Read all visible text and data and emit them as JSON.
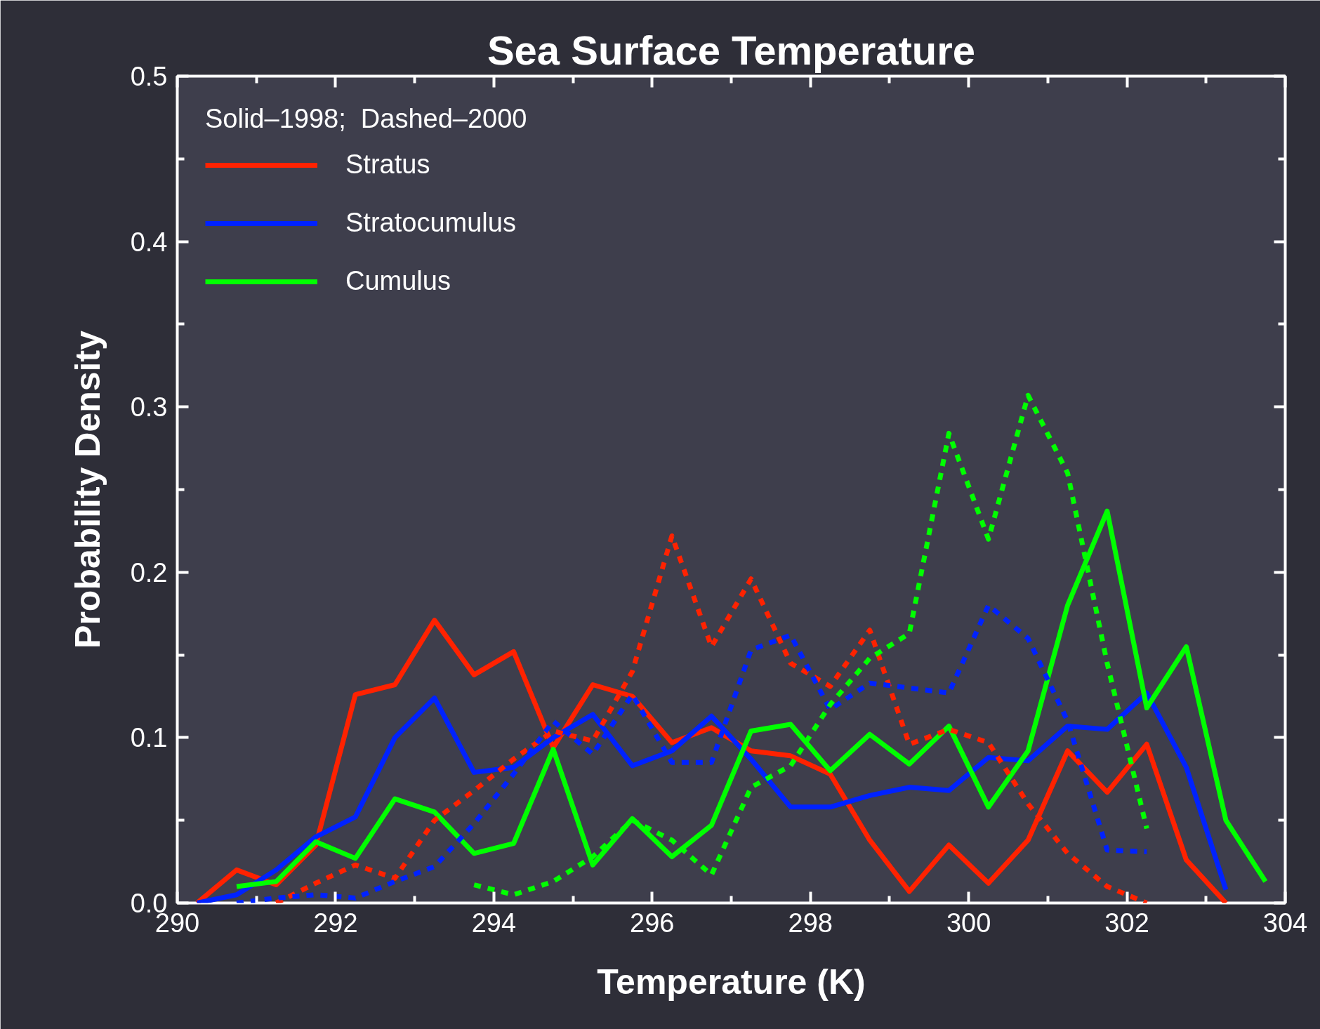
{
  "chart_data": {
    "type": "line",
    "title": "Sea Surface Temperature",
    "xlabel": "Temperature (K)",
    "ylabel": "Probability Density",
    "legend_title": "Solid–1998;  Dashed–2000",
    "legend": "top left",
    "grid": false,
    "marker": "none",
    "xlim": [
      290,
      304
    ],
    "xticks": [
      290,
      292,
      294,
      296,
      298,
      300,
      302,
      304
    ],
    "ylim": [
      0,
      0.5
    ],
    "yticks": [
      {
        "value": 0,
        "label": "0.0"
      },
      {
        "value": 0.1,
        "label": "0.1"
      },
      {
        "value": 0.2,
        "label": "0.2"
      },
      {
        "value": 0.3,
        "label": "0.3"
      },
      {
        "value": 0.4,
        "label": "0.4"
      },
      {
        "value": 0.5,
        "label": "0.5"
      }
    ],
    "series": [
      {
        "name": "Stratus",
        "color": "#ff2200",
        "line_style": "solid",
        "x": [
          290.25,
          290.75,
          291.25,
          291.75,
          292.25,
          292.75,
          293.25,
          293.75,
          294.25,
          294.75,
          295.25,
          295.75,
          296.25,
          296.75,
          297.25,
          297.75,
          298.25,
          298.75,
          299.25,
          299.75,
          300.25,
          300.75,
          301.25,
          301.75,
          302.25,
          302.75,
          303.25
        ],
        "values": [
          0,
          0.02,
          0.011,
          0.035,
          0.126,
          0.132,
          0.171,
          0.138,
          0.152,
          0.094,
          0.132,
          0.125,
          0.097,
          0.106,
          0.092,
          0.089,
          0.078,
          0.038,
          0.007,
          0.035,
          0.012,
          0.038,
          0.092,
          0.067,
          0.096,
          0.026,
          0
        ]
      },
      {
        "name": "Stratocumulus",
        "color": "#0022ff",
        "line_style": "solid",
        "x": [
          290.25,
          290.75,
          291.25,
          291.75,
          292.25,
          292.75,
          293.25,
          293.75,
          294.25,
          294.75,
          295.25,
          295.75,
          296.25,
          296.75,
          297.25,
          297.75,
          298.25,
          298.75,
          299.25,
          299.75,
          300.25,
          300.75,
          301.25,
          301.75,
          302.25,
          302.75,
          303.25
        ],
        "values": [
          0,
          0.005,
          0.02,
          0.04,
          0.052,
          0.1,
          0.124,
          0.079,
          0.082,
          0.1,
          0.114,
          0.083,
          0.092,
          0.113,
          0.087,
          0.058,
          0.058,
          0.065,
          0.07,
          0.068,
          0.088,
          0.086,
          0.107,
          0.105,
          0.127,
          0.082,
          0.008
        ]
      },
      {
        "name": "Cumulus",
        "color": "#00ff00",
        "line_style": "solid",
        "x": [
          290.75,
          291.25,
          291.75,
          292.25,
          292.75,
          293.25,
          293.75,
          294.25,
          294.75,
          295.25,
          295.75,
          296.25,
          296.75,
          297.25,
          297.75,
          298.25,
          298.75,
          299.25,
          299.75,
          300.25,
          300.75,
          301.25,
          301.75,
          302.25,
          302.75,
          303.25,
          303.75
        ],
        "values": [
          0.01,
          0.013,
          0.037,
          0.027,
          0.063,
          0.055,
          0.03,
          0.036,
          0.093,
          0.023,
          0.051,
          0.028,
          0.047,
          0.104,
          0.108,
          0.08,
          0.102,
          0.084,
          0.107,
          0.058,
          0.092,
          0.18,
          0.237,
          0.118,
          0.155,
          0.05,
          0.013
        ]
      },
      {
        "color": "#ff2200",
        "line_style": "dashed",
        "x": [
          291.25,
          291.75,
          292.25,
          292.75,
          293.25,
          293.75,
          294.25,
          294.75,
          295.25,
          295.75,
          296.25,
          296.75,
          297.25,
          297.75,
          298.25,
          298.75,
          299.25,
          299.75,
          300.25,
          300.75,
          301.25,
          301.75,
          302.25
        ],
        "values": [
          0,
          0.012,
          0.023,
          0.015,
          0.05,
          0.068,
          0.087,
          0.104,
          0.098,
          0.14,
          0.222,
          0.155,
          0.196,
          0.145,
          0.131,
          0.165,
          0.096,
          0.105,
          0.097,
          0.06,
          0.03,
          0.01,
          0
        ]
      },
      {
        "color": "#0022ff",
        "line_style": "dashed",
        "x": [
          290.75,
          291.25,
          291.75,
          292.25,
          292.75,
          293.25,
          293.75,
          294.25,
          294.75,
          295.25,
          295.75,
          296.25,
          296.75,
          297.25,
          297.75,
          298.25,
          298.75,
          299.25,
          299.75,
          300.25,
          300.75,
          301.25,
          301.75,
          302.25
        ],
        "values": [
          0,
          0.003,
          0.005,
          0.003,
          0.013,
          0.022,
          0.048,
          0.078,
          0.11,
          0.09,
          0.126,
          0.085,
          0.085,
          0.153,
          0.162,
          0.117,
          0.133,
          0.13,
          0.127,
          0.18,
          0.16,
          0.11,
          0.032,
          0.031
        ]
      },
      {
        "color": "#00ff00",
        "line_style": "dashed",
        "x": [
          293.75,
          294.25,
          294.75,
          295.25,
          295.75,
          296.25,
          296.75,
          297.25,
          297.75,
          298.25,
          298.75,
          299.25,
          299.75,
          300.25,
          300.75,
          301.25,
          301.75,
          302.25
        ],
        "values": [
          0.011,
          0.005,
          0.013,
          0.028,
          0.05,
          0.038,
          0.017,
          0.07,
          0.083,
          0.12,
          0.148,
          0.163,
          0.284,
          0.22,
          0.307,
          0.26,
          0.145,
          0.045
        ]
      }
    ]
  }
}
